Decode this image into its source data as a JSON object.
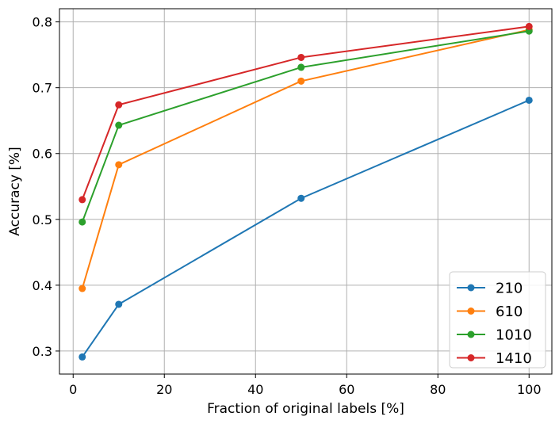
{
  "chart_data": {
    "type": "line",
    "xlabel": "Fraction of original labels [%]",
    "ylabel": "Accuracy [%]",
    "x": [
      2,
      10,
      50,
      100
    ],
    "xlim": [
      -3,
      105
    ],
    "ylim": [
      0.265,
      0.82
    ],
    "xticks": [
      0,
      20,
      40,
      60,
      80,
      100
    ],
    "yticks": [
      0.3,
      0.4,
      0.5,
      0.6,
      0.7,
      0.8
    ],
    "grid": true,
    "legend_position": "lower-right",
    "series": [
      {
        "name": "210",
        "color": "#1f77b4",
        "values": [
          0.291,
          0.371,
          0.532,
          0.681
        ]
      },
      {
        "name": "610",
        "color": "#ff7f0e",
        "values": [
          0.395,
          0.583,
          0.71,
          0.788
        ]
      },
      {
        "name": "1010",
        "color": "#2ca02c",
        "values": [
          0.496,
          0.643,
          0.731,
          0.786
        ]
      },
      {
        "name": "1410",
        "color": "#d62728",
        "values": [
          0.53,
          0.674,
          0.746,
          0.793
        ]
      }
    ]
  }
}
